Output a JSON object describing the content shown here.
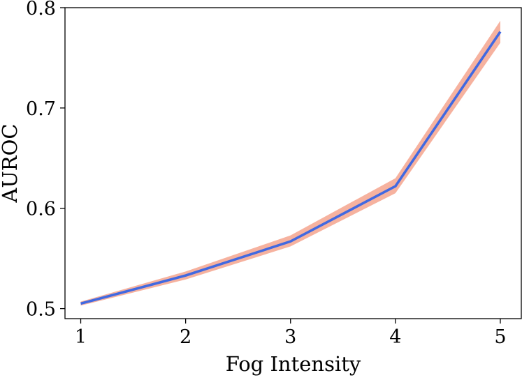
{
  "chart_data": {
    "type": "line",
    "title": "",
    "xlabel": "Fog Intensity",
    "ylabel": "AUROC",
    "x": [
      1,
      2,
      3,
      4,
      5
    ],
    "xlim": [
      0.85,
      5.2
    ],
    "ylim": [
      0.49,
      0.8
    ],
    "xticks": [
      1,
      2,
      3,
      4,
      5
    ],
    "xtick_labels": [
      "1",
      "2",
      "3",
      "4",
      "5"
    ],
    "yticks": [
      0.5,
      0.6,
      0.7,
      0.8
    ],
    "ytick_labels": [
      "0.5",
      "0.6",
      "0.7",
      "0.8"
    ],
    "grid": false,
    "series": [
      {
        "values": [
          0.505,
          0.533,
          0.567,
          0.622,
          0.776
        ],
        "lower": [
          0.503,
          0.529,
          0.562,
          0.615,
          0.765
        ],
        "upper": [
          0.507,
          0.537,
          0.573,
          0.63,
          0.787
        ],
        "color": "#4169e1",
        "band_color": "#f4a48e"
      }
    ]
  }
}
